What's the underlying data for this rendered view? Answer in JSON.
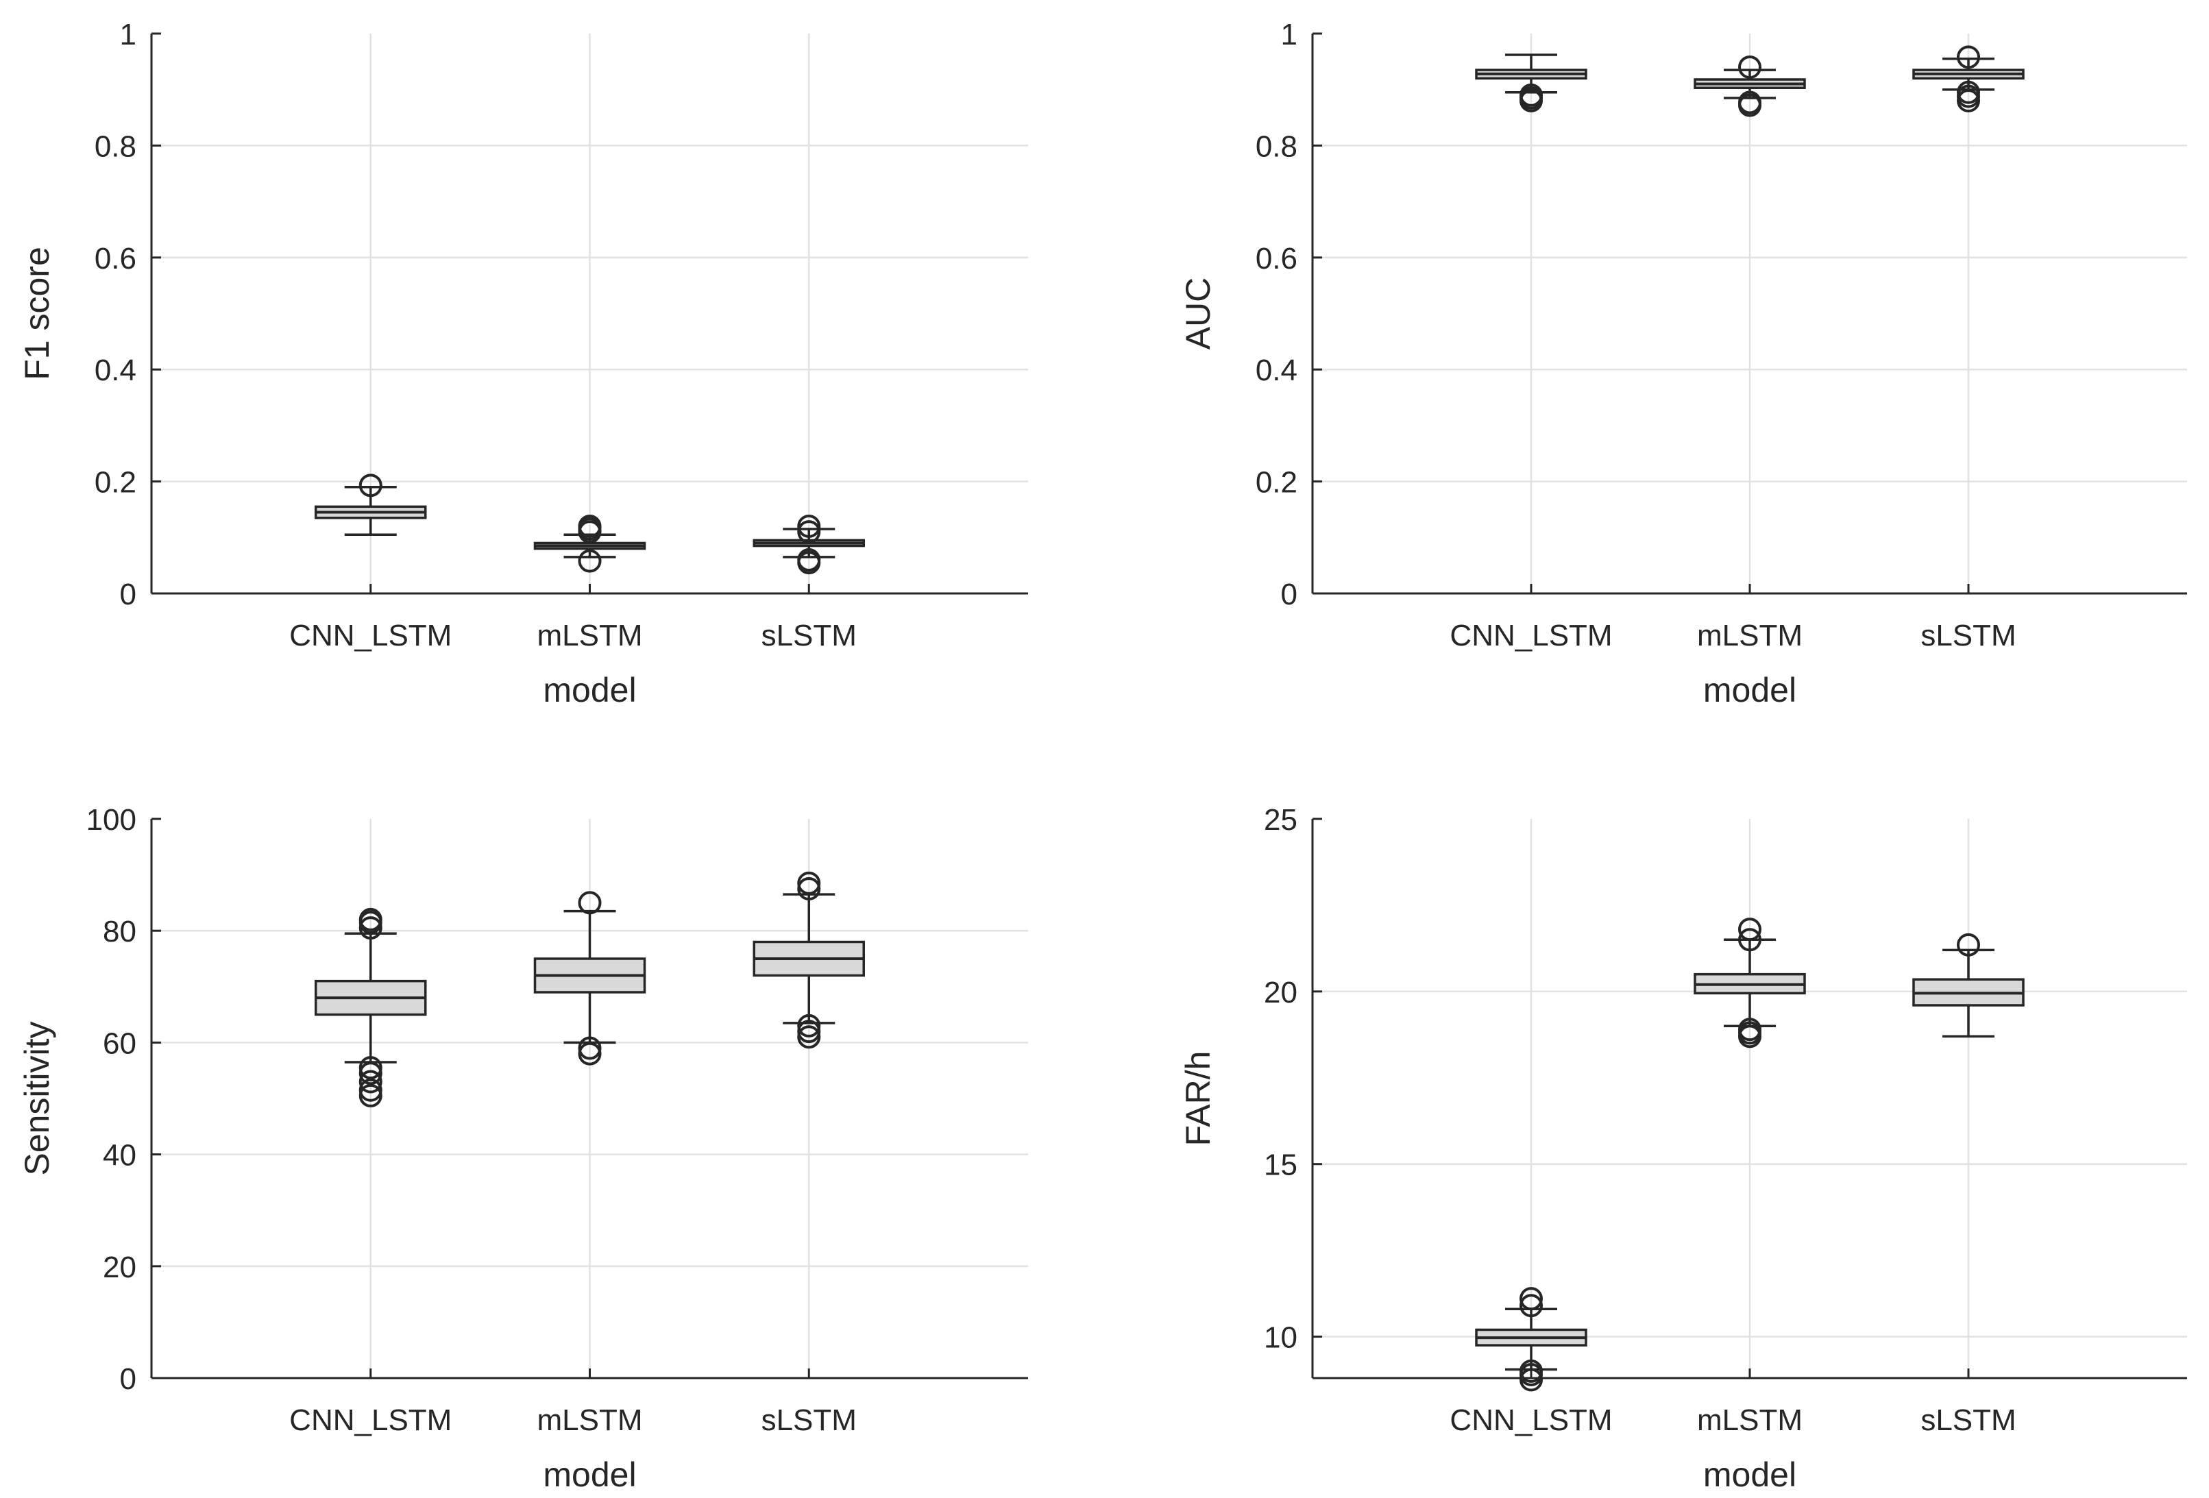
{
  "chart_data": [
    {
      "type": "boxplot",
      "xlabel": "model",
      "ylabel": "F1 score",
      "ylim": [
        0,
        1
      ],
      "yticks": [
        0,
        0.2,
        0.4,
        0.6,
        0.8,
        1
      ],
      "ytick_labels": [
        "0",
        "0.2",
        "0.4",
        "0.6",
        "0.8",
        "1"
      ],
      "categories": [
        "CNN_LSTM",
        "mLSTM",
        "sLSTM"
      ],
      "grid": true,
      "boxes": [
        {
          "name": "CNN_LSTM",
          "whisker_low": 0.105,
          "q1": 0.135,
          "median": 0.145,
          "q3": 0.155,
          "whisker_high": 0.19,
          "outliers": [
            0.193
          ]
        },
        {
          "name": "mLSTM",
          "whisker_low": 0.065,
          "q1": 0.08,
          "median": 0.085,
          "q3": 0.09,
          "whisker_high": 0.105,
          "outliers": [
            0.058,
            0.11,
            0.115,
            0.12
          ]
        },
        {
          "name": "sLSTM",
          "whisker_low": 0.065,
          "q1": 0.085,
          "median": 0.09,
          "q3": 0.095,
          "whisker_high": 0.115,
          "outliers": [
            0.055,
            0.06,
            0.11,
            0.12
          ]
        }
      ]
    },
    {
      "type": "boxplot",
      "xlabel": "model",
      "ylabel": "AUC",
      "ylim": [
        0,
        1
      ],
      "yticks": [
        0,
        0.2,
        0.4,
        0.6,
        0.8,
        1
      ],
      "ytick_labels": [
        "0",
        "0.2",
        "0.4",
        "0.6",
        "0.8",
        "1"
      ],
      "categories": [
        "CNN_LSTM",
        "mLSTM",
        "sLSTM"
      ],
      "grid": true,
      "boxes": [
        {
          "name": "CNN_LSTM",
          "whisker_low": 0.895,
          "q1": 0.92,
          "median": 0.928,
          "q3": 0.935,
          "whisker_high": 0.962,
          "outliers": [
            0.88,
            0.885,
            0.89
          ]
        },
        {
          "name": "mLSTM",
          "whisker_low": 0.885,
          "q1": 0.903,
          "median": 0.91,
          "q3": 0.918,
          "whisker_high": 0.935,
          "outliers": [
            0.872,
            0.877,
            0.94
          ]
        },
        {
          "name": "sLSTM",
          "whisker_low": 0.9,
          "q1": 0.92,
          "median": 0.928,
          "q3": 0.935,
          "whisker_high": 0.955,
          "outliers": [
            0.88,
            0.888,
            0.895,
            0.958
          ]
        }
      ]
    },
    {
      "type": "boxplot",
      "xlabel": "model",
      "ylabel": "Sensitivity",
      "ylim": [
        0,
        100
      ],
      "yticks": [
        0,
        20,
        40,
        60,
        80,
        100
      ],
      "ytick_labels": [
        "0",
        "20",
        "40",
        "60",
        "80",
        "100"
      ],
      "categories": [
        "CNN_LSTM",
        "mLSTM",
        "sLSTM"
      ],
      "grid": true,
      "boxes": [
        {
          "name": "CNN_LSTM",
          "whisker_low": 56.5,
          "q1": 65,
          "median": 68,
          "q3": 71,
          "whisker_high": 79.5,
          "outliers": [
            50.5,
            51.5,
            53,
            54.5,
            55.5,
            80.5,
            81.5,
            82
          ]
        },
        {
          "name": "mLSTM",
          "whisker_low": 60,
          "q1": 69,
          "median": 72,
          "q3": 75,
          "whisker_high": 83.5,
          "outliers": [
            58,
            59,
            85
          ]
        },
        {
          "name": "sLSTM",
          "whisker_low": 63.5,
          "q1": 72,
          "median": 75,
          "q3": 78,
          "whisker_high": 86.5,
          "outliers": [
            61,
            62,
            63,
            87.5,
            88.5
          ]
        }
      ]
    },
    {
      "type": "boxplot",
      "xlabel": "model",
      "ylabel": "FAR/h",
      "ylim": [
        8.8,
        25
      ],
      "yticks": [
        10,
        15,
        20,
        25
      ],
      "ytick_labels": [
        "10",
        "15",
        "20",
        "25"
      ],
      "categories": [
        "CNN_LSTM",
        "mLSTM",
        "sLSTM"
      ],
      "grid": true,
      "boxes": [
        {
          "name": "CNN_LSTM",
          "whisker_low": 9.05,
          "q1": 9.75,
          "median": 9.97,
          "q3": 10.2,
          "whisker_high": 10.8,
          "outliers": [
            8.75,
            8.9,
            9.0,
            10.9,
            11.1
          ]
        },
        {
          "name": "mLSTM",
          "whisker_low": 19,
          "q1": 19.95,
          "median": 20.2,
          "q3": 20.5,
          "whisker_high": 21.5,
          "outliers": [
            18.7,
            18.8,
            18.9,
            21.5,
            21.8
          ]
        },
        {
          "name": "sLSTM",
          "whisker_low": 18.7,
          "q1": 19.6,
          "median": 19.95,
          "q3": 20.35,
          "whisker_high": 21.2,
          "outliers": [
            21.35
          ]
        }
      ]
    }
  ]
}
